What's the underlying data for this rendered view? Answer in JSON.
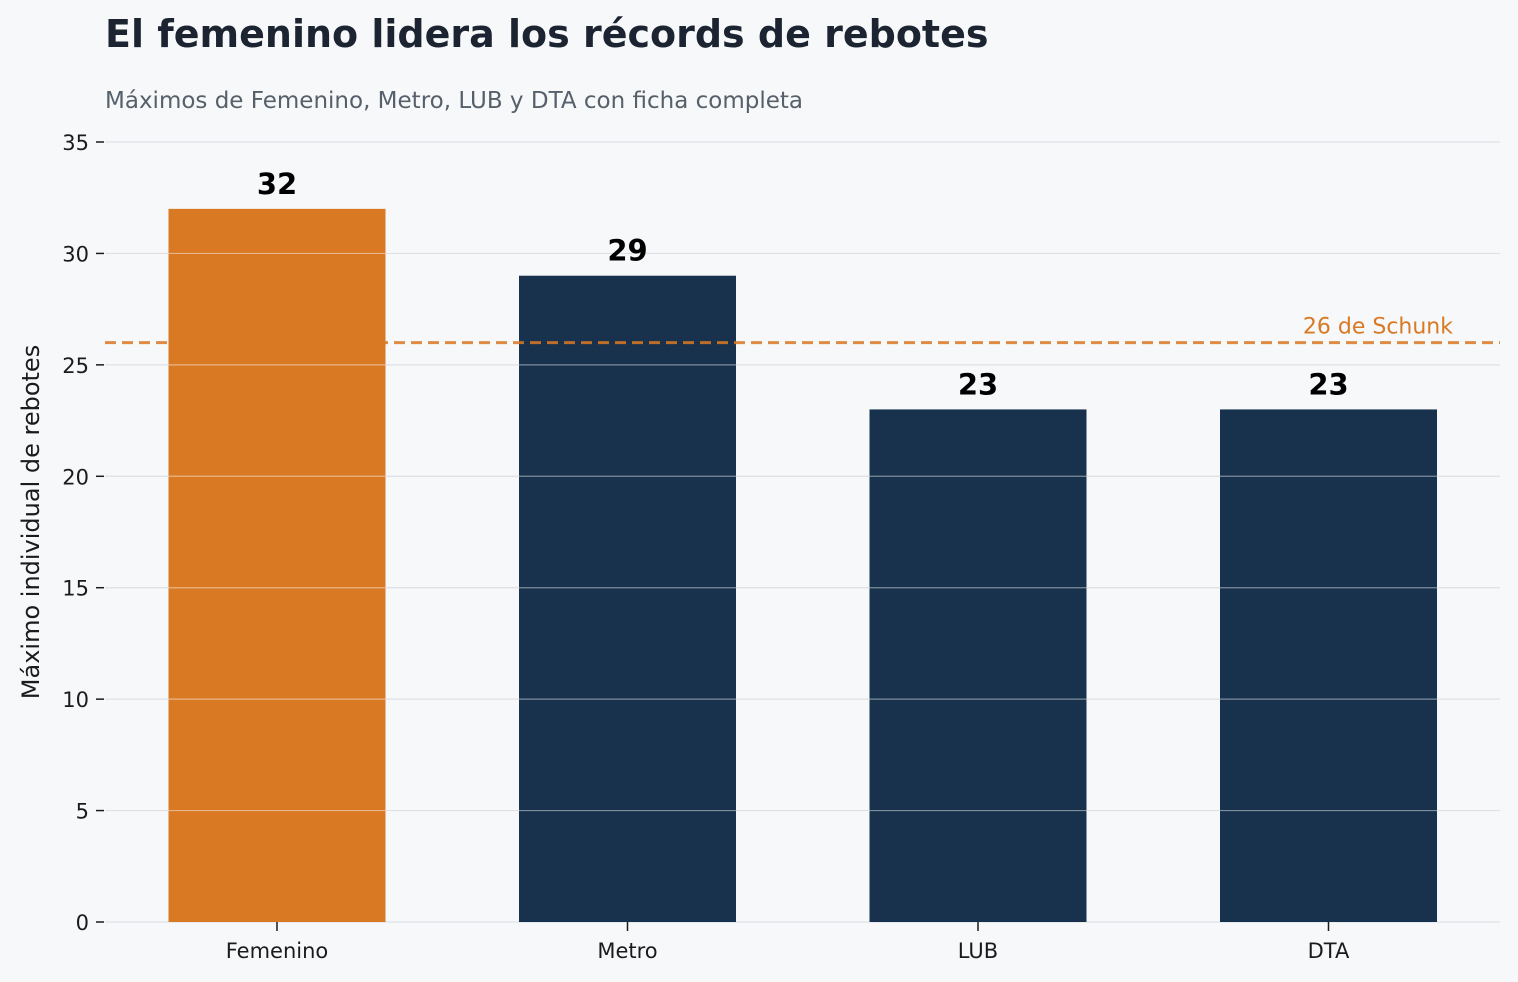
{
  "chart_data": {
    "type": "bar",
    "title": "El femenino lidera los récords de rebotes",
    "subtitle": "Máximos de Femenino, Metro, LUB y DTA con ficha completa",
    "ylabel": "Máximo individual de rebotes",
    "xlabel": "",
    "categories": [
      "Femenino",
      "Metro",
      "LUB",
      "DTA"
    ],
    "values": [
      32,
      29,
      23,
      23
    ],
    "value_labels": [
      "32",
      "29",
      "23",
      "23"
    ],
    "bar_colors": [
      "#d97924",
      "#18324d",
      "#18324d",
      "#18324d"
    ],
    "ylim": [
      0,
      35
    ],
    "yticks": [
      0,
      5,
      10,
      15,
      20,
      25,
      30,
      35
    ],
    "grid": true,
    "reference_line": {
      "value": 26,
      "label": "26 de Schunk",
      "color": "#d97924",
      "style": "dashed"
    }
  }
}
